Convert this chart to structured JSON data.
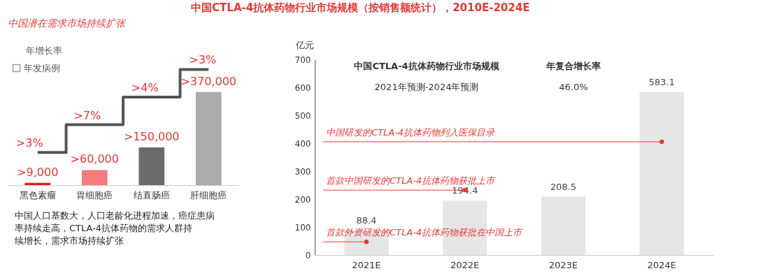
{
  "chart_data": [
    {
      "type": "bar",
      "title": "中国潜在需求市场持续扩张",
      "categories": [
        "黑色素瘤",
        "胃细胞癌",
        "结直肠癌",
        "肝细胞癌"
      ],
      "legend": "top left",
      "series": [
        {
          "name": "年发病例",
          "color": "#9e9e9e",
          "colors": [
            "#d9201f",
            "#f47b7b",
            "#6b6b6b",
            "#ababab"
          ],
          "values": [
            9000,
            60000,
            150000,
            370000
          ],
          "value_labels": [
            ">9,000",
            ">60,000",
            ">150,000",
            ">370,000"
          ]
        }
      ],
      "annotations": [
        "年增长率",
        "中国人口基数大，人口老龄化进程加速，癌症患病率持续走高，CTLA-4抗体药物的需求人群持续增长，需求市场持续扩张",
        ">3%",
        ">7%",
        ">4%",
        ">3%"
      ]
    },
    {
      "type": "bar",
      "title": "中国CTLA-4抗体药物行业市场规模（按销售额统计），2010E-2024E",
      "ylabel": "亿元",
      "categories": [
        "2021E",
        "2022E",
        "2023E",
        "2024E"
      ],
      "values": [
        88.4,
        194.4,
        208.5,
        583.1
      ],
      "color": "#e6e6e6",
      "ylim": [
        0,
        700
      ],
      "yticks": [
        0,
        100,
        200,
        300,
        400,
        500,
        600,
        700
      ],
      "data_labels": true,
      "annotations": [
        "中国CTLA-4抗体药物行业市场规模",
        "年复合增长率",
        "2021年预测-2024年预测",
        "46.0%",
        {
          "text": "首款外资研发的CTLA-4抗体药物获批在中国上市",
          "x": "2021E",
          "y": 47
        },
        {
          "text": "首款中国研发的CTLA-4抗体药物获批上市",
          "x": "2022E",
          "y": 232
        },
        {
          "text": "中国研发的CTLA-4抗体药物列入医保目录",
          "x": "2024E",
          "y": 405
        }
      ]
    }
  ]
}
